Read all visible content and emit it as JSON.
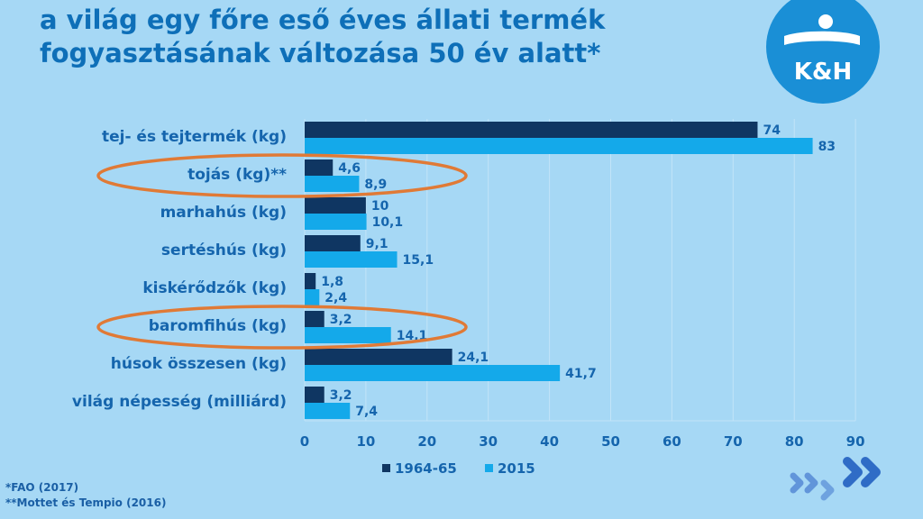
{
  "title": {
    "line1": "a világ egy főre eső éves állati termék",
    "line2": "fogyasztásának változása 50 év alatt*"
  },
  "logo": {
    "text": "K&H",
    "icon": "kh-bank-logo"
  },
  "footnotes": [
    "*FAO (2017)",
    "**Mottet és Tempio (2016)"
  ],
  "colors": {
    "background": "#a6d8f5",
    "title": "#0e6fb8",
    "series_1964": "#0f3662",
    "series_2015": "#14a9ea",
    "labels": "#1565ad",
    "highlight": "#e07a36"
  },
  "chart_data": {
    "type": "bar",
    "orientation": "horizontal",
    "categories": [
      "tej- és tejtermék (kg)",
      "tojás (kg)**",
      "marhahús (kg)",
      "sertéshús (kg)",
      "kiskérődzők (kg)",
      "baromfihús (kg)",
      "húsok összesen (kg)",
      "világ népesség (milliárd)"
    ],
    "series": [
      {
        "name": "1964-65",
        "values": [
          74,
          4.6,
          10,
          9.1,
          1.8,
          3.2,
          24.1,
          3.2
        ],
        "labels": [
          "74",
          "4,6",
          "10",
          "9,1",
          "1,8",
          "3,2",
          "24,1",
          "3,2"
        ]
      },
      {
        "name": "2015",
        "values": [
          83,
          8.9,
          10.1,
          15.1,
          2.4,
          14.1,
          41.7,
          7.4
        ],
        "labels": [
          "83",
          "8,9",
          "10,1",
          "15,1",
          "2,4",
          "14,1",
          "41,7",
          "7,4"
        ]
      }
    ],
    "xlim": [
      0,
      90
    ],
    "xticks": [
      0,
      10,
      20,
      30,
      40,
      50,
      60,
      70,
      80,
      90
    ],
    "grid": true,
    "legend_position": "bottom",
    "highlighted_categories": [
      "tojás (kg)**",
      "baromfihús (kg)"
    ]
  }
}
